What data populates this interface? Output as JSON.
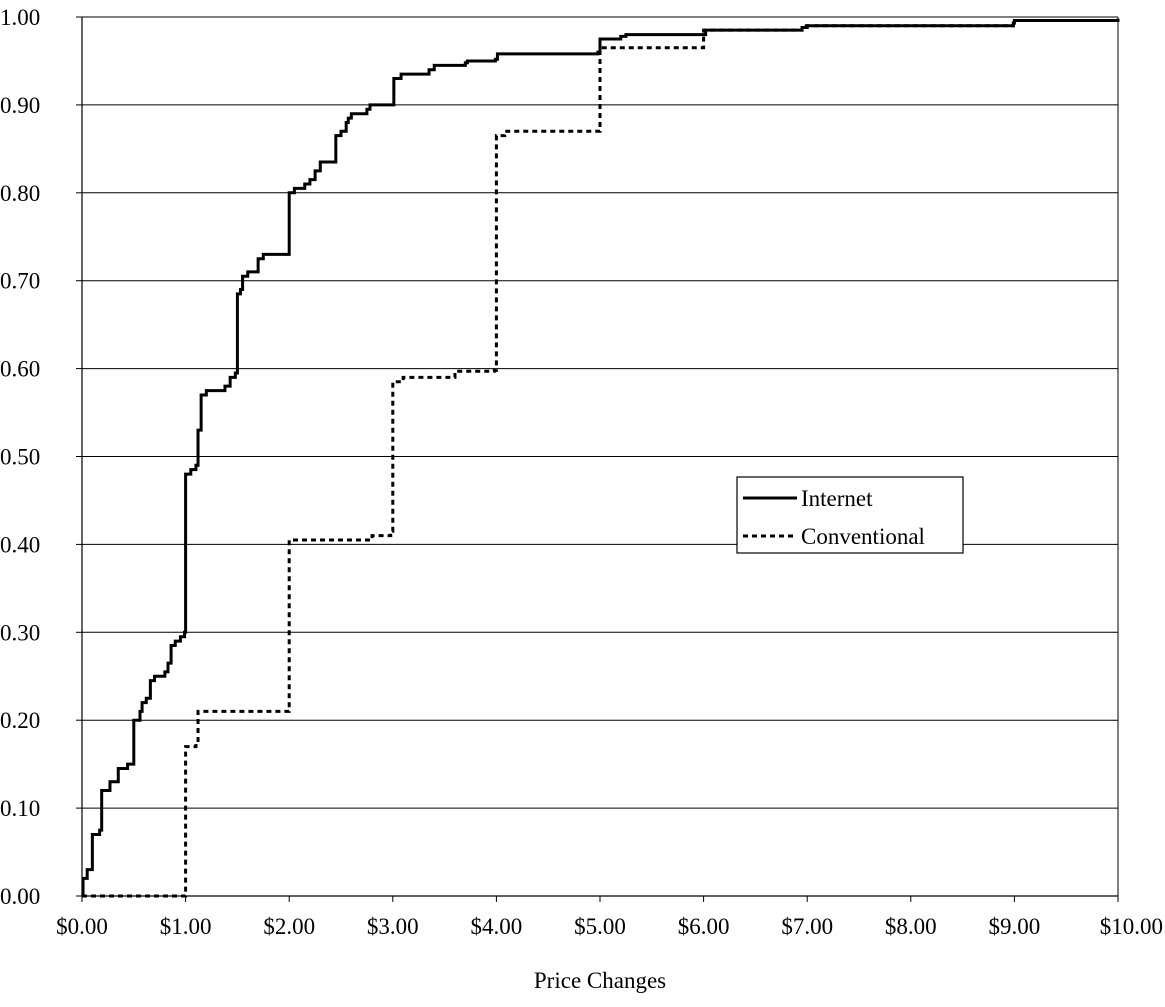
{
  "chart_data": {
    "type": "line",
    "title": "",
    "xlabel": "Price Changes",
    "ylabel": "",
    "xlim": [
      0,
      10
    ],
    "ylim": [
      0,
      1
    ],
    "x_ticks": [
      0,
      1,
      2,
      3,
      4,
      5,
      6,
      7,
      8,
      9,
      10
    ],
    "x_tick_labels": [
      "$0.00",
      "$1.00",
      "$2.00",
      "$3.00",
      "$4.00",
      "$5.00",
      "$6.00",
      "$7.00",
      "$8.00",
      "$9.00",
      "$10.00"
    ],
    "y_ticks": [
      0,
      0.1,
      0.2,
      0.3,
      0.4,
      0.5,
      0.6,
      0.7,
      0.8,
      0.9,
      1.0
    ],
    "y_tick_labels": [
      "0.00",
      "0.10",
      "0.20",
      "0.30",
      "0.40",
      "0.50",
      "0.60",
      "0.70",
      "0.80",
      "0.90",
      "1.00"
    ],
    "grid": "horizontal",
    "legend_position": "right-middle",
    "series": [
      {
        "name": "Internet",
        "style": "solid",
        "color": "#000000",
        "points": [
          [
            0,
            0
          ],
          [
            0.01,
            0.02
          ],
          [
            0.05,
            0.03
          ],
          [
            0.08,
            0.03
          ],
          [
            0.1,
            0.07
          ],
          [
            0.17,
            0.075
          ],
          [
            0.19,
            0.12
          ],
          [
            0.25,
            0.12
          ],
          [
            0.27,
            0.13
          ],
          [
            0.32,
            0.13
          ],
          [
            0.35,
            0.145
          ],
          [
            0.44,
            0.15
          ],
          [
            0.47,
            0.15
          ],
          [
            0.5,
            0.2
          ],
          [
            0.53,
            0.2
          ],
          [
            0.56,
            0.21
          ],
          [
            0.58,
            0.22
          ],
          [
            0.62,
            0.225
          ],
          [
            0.66,
            0.245
          ],
          [
            0.7,
            0.25
          ],
          [
            0.75,
            0.25
          ],
          [
            0.8,
            0.255
          ],
          [
            0.83,
            0.265
          ],
          [
            0.86,
            0.285
          ],
          [
            0.9,
            0.29
          ],
          [
            0.95,
            0.295
          ],
          [
            0.99,
            0.3
          ],
          [
            1.0,
            0.48
          ],
          [
            1.05,
            0.485
          ],
          [
            1.1,
            0.49
          ],
          [
            1.12,
            0.53
          ],
          [
            1.15,
            0.57
          ],
          [
            1.2,
            0.575
          ],
          [
            1.38,
            0.58
          ],
          [
            1.43,
            0.59
          ],
          [
            1.48,
            0.595
          ],
          [
            1.5,
            0.685
          ],
          [
            1.53,
            0.69
          ],
          [
            1.55,
            0.705
          ],
          [
            1.6,
            0.71
          ],
          [
            1.66,
            0.71
          ],
          [
            1.7,
            0.725
          ],
          [
            1.75,
            0.73
          ],
          [
            1.99,
            0.73
          ],
          [
            2.0,
            0.8
          ],
          [
            2.05,
            0.805
          ],
          [
            2.15,
            0.81
          ],
          [
            2.2,
            0.815
          ],
          [
            2.25,
            0.825
          ],
          [
            2.3,
            0.835
          ],
          [
            2.42,
            0.835
          ],
          [
            2.45,
            0.865
          ],
          [
            2.5,
            0.87
          ],
          [
            2.55,
            0.88
          ],
          [
            2.57,
            0.885
          ],
          [
            2.6,
            0.89
          ],
          [
            2.75,
            0.895
          ],
          [
            2.78,
            0.9
          ],
          [
            2.99,
            0.9
          ],
          [
            3.01,
            0.93
          ],
          [
            3.08,
            0.935
          ],
          [
            3.35,
            0.94
          ],
          [
            3.4,
            0.945
          ],
          [
            3.7,
            0.948
          ],
          [
            3.72,
            0.95
          ],
          [
            3.99,
            0.952
          ],
          [
            4.01,
            0.958
          ],
          [
            4.98,
            0.96
          ],
          [
            5.0,
            0.975
          ],
          [
            5.2,
            0.978
          ],
          [
            5.25,
            0.98
          ],
          [
            6.0,
            0.98
          ],
          [
            6.02,
            0.985
          ],
          [
            6.95,
            0.988
          ],
          [
            7.0,
            0.99
          ],
          [
            8.99,
            0.993
          ],
          [
            9.0,
            0.996
          ],
          [
            10.0,
            0.998
          ]
        ]
      },
      {
        "name": "Conventional",
        "style": "dashed",
        "color": "#000000",
        "points": [
          [
            0,
            0
          ],
          [
            0.99,
            0
          ],
          [
            1.0,
            0.17
          ],
          [
            1.1,
            0.175
          ],
          [
            1.12,
            0.21
          ],
          [
            1.99,
            0.21
          ],
          [
            2.0,
            0.405
          ],
          [
            2.8,
            0.41
          ],
          [
            2.98,
            0.415
          ],
          [
            3.0,
            0.585
          ],
          [
            3.1,
            0.59
          ],
          [
            3.58,
            0.59
          ],
          [
            3.6,
            0.597
          ],
          [
            3.98,
            0.598
          ],
          [
            4.0,
            0.865
          ],
          [
            4.08,
            0.87
          ],
          [
            4.99,
            0.87
          ],
          [
            5.0,
            0.965
          ],
          [
            5.98,
            0.965
          ],
          [
            6.0,
            0.985
          ],
          [
            6.95,
            0.99
          ],
          [
            7.0,
            0.99
          ],
          [
            8.99,
            0.993
          ],
          [
            9.0,
            0.996
          ],
          [
            10.0,
            0.998
          ]
        ]
      }
    ]
  }
}
